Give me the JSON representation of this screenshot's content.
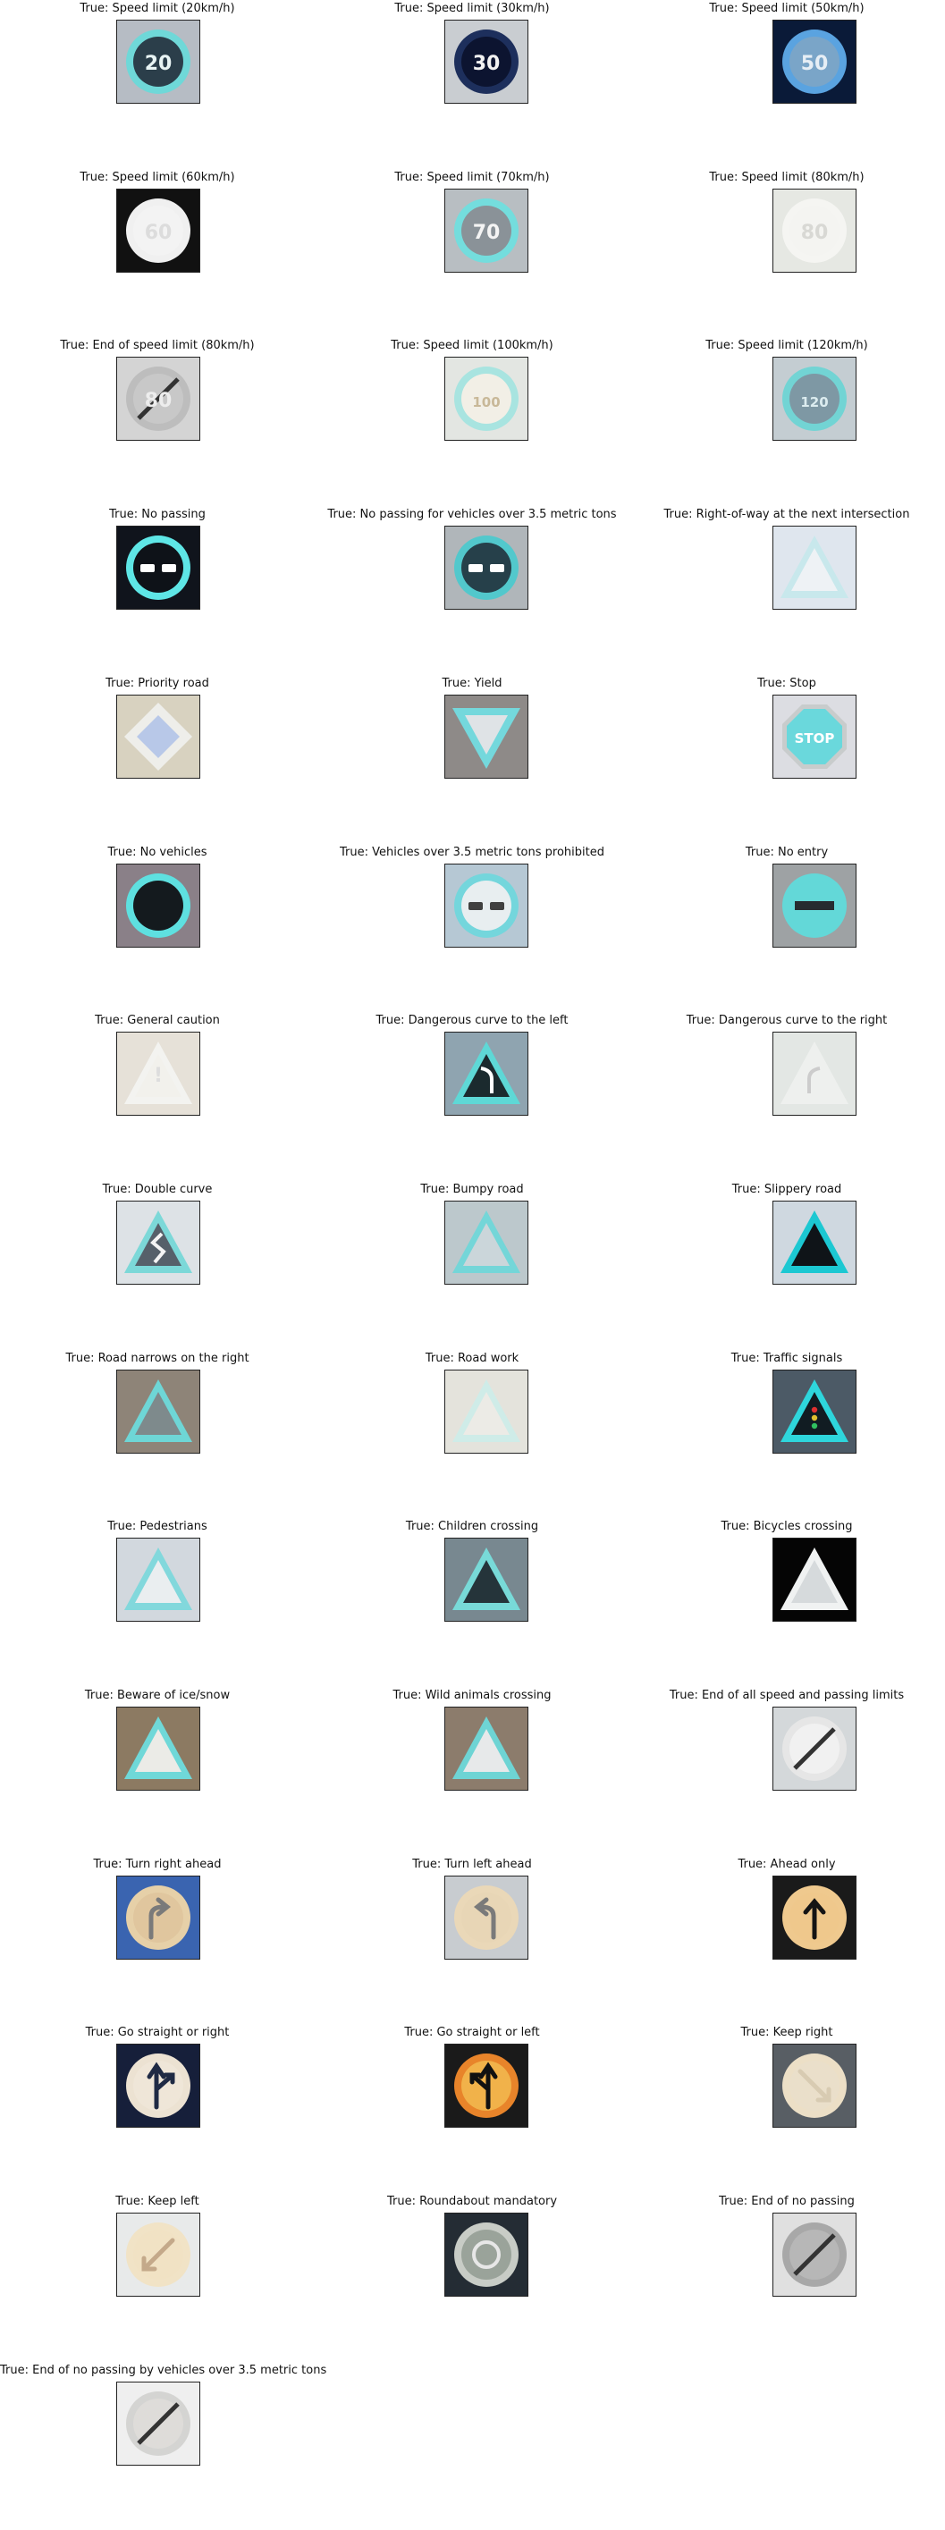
{
  "prefix": "True: ",
  "signs": [
    {
      "label": "Speed limit (20km/h)",
      "shape": "circle",
      "text": "20",
      "bg": "#b6bcc4",
      "rim": "#6fd8d8",
      "fill": "#2b3e4a",
      "ink": "#e8f4f4",
      "dark": true
    },
    {
      "label": "Speed limit (30km/h)",
      "shape": "circle",
      "text": "30",
      "bg": "#c9cdd1",
      "rim": "#1d2f5c",
      "fill": "#0c1430",
      "ink": "#f2f2f2",
      "dark": true
    },
    {
      "label": "Speed limit (50km/h)",
      "shape": "circle",
      "text": "50",
      "bg": "#0a1a38",
      "rim": "#5aa3e0",
      "fill": "#7aa5c8",
      "ink": "#e6eef5",
      "dark": true
    },
    {
      "label": "Speed limit (60km/h)",
      "shape": "circle",
      "text": "60",
      "bg": "#111111",
      "rim": "#f0f0f0",
      "fill": "#f3f3f3",
      "ink": "#dcdcdc",
      "dark": false
    },
    {
      "label": "Speed limit (70km/h)",
      "shape": "circle",
      "text": "70",
      "bg": "#b8bec2",
      "rim": "#74dddd",
      "fill": "#8a9298",
      "ink": "#f4f4f4",
      "dark": true
    },
    {
      "label": "Speed limit (80km/h)",
      "shape": "circle",
      "text": "80",
      "bg": "#e6e8e3",
      "rim": "#f5f5f2",
      "fill": "#f4f4f1",
      "ink": "#d8d8d4",
      "dark": false
    },
    {
      "label": "End of speed limit (80km/h)",
      "shape": "circle",
      "text": "80",
      "bg": "#d4d4d4",
      "rim": "#bdbdbd",
      "fill": "#c8c8c8",
      "ink": "#ededed",
      "dark": false,
      "slash": true
    },
    {
      "label": "Speed limit (100km/h)",
      "shape": "circle",
      "text": "100",
      "bg": "#e3e6e2",
      "rim": "#a8e4e0",
      "fill": "#f2efe6",
      "ink": "#c8b898",
      "dark": false
    },
    {
      "label": "Speed limit (120km/h)",
      "shape": "circle",
      "text": "120",
      "bg": "#c4cdd2",
      "rim": "#72d4d4",
      "fill": "#7e98a4",
      "ink": "#dcecef",
      "dark": true
    },
    {
      "label": "No passing",
      "shape": "circle",
      "text": "",
      "bg": "#10141c",
      "rim": "#5ee6e6",
      "fill": "#0e1218",
      "ink": "#ffffff",
      "dark": true,
      "cars": true
    },
    {
      "label": "No passing for vehicles over 3.5 metric tons",
      "shape": "circle",
      "text": "",
      "bg": "#b0b6ba",
      "rim": "#52c8cc",
      "fill": "#26404a",
      "ink": "#ffffff",
      "dark": true,
      "cars": true
    },
    {
      "label": "Right-of-way at the next intersection",
      "shape": "triangle",
      "text": "",
      "bg": "#dfe6ee",
      "rim": "#c8e8ec",
      "fill": "#eef2f5",
      "ink": "#777777",
      "dark": false
    },
    {
      "label": "Priority road",
      "shape": "diamond",
      "text": "",
      "bg": "#d8d2c0",
      "rim": "#eeeeea",
      "fill": "#b8c8e8",
      "ink": "#ffffff",
      "dark": false
    },
    {
      "label": "Yield",
      "shape": "yield",
      "text": "",
      "bg": "#8e8a88",
      "rim": "#74d8dc",
      "fill": "#dfe3e6",
      "ink": "#ffffff",
      "dark": false
    },
    {
      "label": "Stop",
      "shape": "octagon",
      "text": "STOP",
      "bg": "#dcdde2",
      "rim": "#c8cccc",
      "fill": "#6ad8dc",
      "ink": "#ffffff",
      "dark": true
    },
    {
      "label": "No vehicles",
      "shape": "circle",
      "text": "",
      "bg": "#8a8088",
      "rim": "#5ee0e0",
      "fill": "#141a1e",
      "ink": "#ffffff",
      "dark": true
    },
    {
      "label": "Vehicles over 3.5 metric tons prohibited",
      "shape": "circle",
      "text": "",
      "bg": "#b6c8d4",
      "rim": "#74d6dc",
      "fill": "#e8eef0",
      "ink": "#404040",
      "dark": false,
      "cars": true
    },
    {
      "label": "No entry",
      "shape": "circle",
      "text": "",
      "bg": "#9ea2a4",
      "rim": "#63d8d8",
      "fill": "#63d8d8",
      "ink": "#262c30",
      "dark": true,
      "bar": true
    },
    {
      "label": "General caution",
      "shape": "triangle",
      "text": "!",
      "bg": "#e6e1d8",
      "rim": "#f3f3f0",
      "fill": "#f2f1ec",
      "ink": "#dddddd",
      "dark": false
    },
    {
      "label": "Dangerous curve to the left",
      "shape": "triangle",
      "text": "",
      "bg": "#8fa4b0",
      "rim": "#5ed8d6",
      "fill": "#1b2a2e",
      "ink": "#ffffff",
      "dark": true,
      "curve": "left"
    },
    {
      "label": "Dangerous curve to the right",
      "shape": "triangle",
      "text": "",
      "bg": "#e3e7e4",
      "rim": "#eef0ee",
      "fill": "#eef0ee",
      "ink": "#cccccc",
      "dark": false,
      "curve": "right"
    },
    {
      "label": "Double curve",
      "shape": "triangle",
      "text": "",
      "bg": "#dde2e6",
      "rim": "#7cd8d8",
      "fill": "#56606a",
      "ink": "#f4f4f4",
      "dark": true,
      "curve": "double"
    },
    {
      "label": "Bumpy road",
      "shape": "triangle",
      "text": "",
      "bg": "#bcc8cc",
      "rim": "#74d6d8",
      "fill": "#cbd6da",
      "ink": "#333333",
      "dark": false
    },
    {
      "label": "Slippery road",
      "shape": "triangle",
      "text": "",
      "bg": "#cfd8e0",
      "rim": "#1cc8d2",
      "fill": "#0f1418",
      "ink": "#e8e8e8",
      "dark": true
    },
    {
      "label": "Road narrows on the right",
      "shape": "triangle",
      "text": "",
      "bg": "#8e8478",
      "rim": "#6ed6d6",
      "fill": "#7e8a8c",
      "ink": "#f0f0f0",
      "dark": true
    },
    {
      "label": "Road work",
      "shape": "triangle",
      "text": "",
      "bg": "#e4e3dc",
      "rim": "#cfece8",
      "fill": "#ecebe6",
      "ink": "#bfbfbf",
      "dark": false
    },
    {
      "label": "Traffic signals",
      "shape": "triangle",
      "text": "",
      "bg": "#4c5a66",
      "rim": "#2ed6dc",
      "fill": "#111c22",
      "ink": "#f0f0f0",
      "dark": true,
      "lights": true
    },
    {
      "label": "Pedestrians",
      "shape": "triangle",
      "text": "",
      "bg": "#d2d8de",
      "rim": "#82d8dc",
      "fill": "#eaeef0",
      "ink": "#3a3a3a",
      "dark": false
    },
    {
      "label": "Children crossing",
      "shape": "triangle",
      "text": "",
      "bg": "#788890",
      "rim": "#78dad8",
      "fill": "#25343a",
      "ink": "#f3f3f3",
      "dark": true
    },
    {
      "label": "Bicycles crossing",
      "shape": "triangle",
      "text": "",
      "bg": "#050505",
      "rim": "#f0f2f2",
      "fill": "#d6dadc",
      "ink": "#5a5a5a",
      "dark": false
    },
    {
      "label": "Beware of ice/snow",
      "shape": "triangle",
      "text": "",
      "bg": "#8c7a62",
      "rim": "#6fd8d8",
      "fill": "#ebebe7",
      "ink": "#6a6a6a",
      "dark": false
    },
    {
      "label": "Wild animals crossing",
      "shape": "triangle",
      "text": "",
      "bg": "#8c7c6c",
      "rim": "#6ed4d4",
      "fill": "#e7e9ea",
      "ink": "#444444",
      "dark": false
    },
    {
      "label": "End of all speed and passing limits",
      "shape": "circle",
      "text": "",
      "bg": "#d4d8da",
      "rim": "#e6e6e6",
      "fill": "#f1f1f1",
      "ink": "#2a2a2a",
      "dark": false,
      "slash": true
    },
    {
      "label": "Turn right ahead",
      "shape": "circle",
      "text": "",
      "bg": "#3a64b0",
      "rim": "#e6d0a8",
      "fill": "#e0c69e",
      "ink": "#7a7a7a",
      "dark": false,
      "arrow": "right"
    },
    {
      "label": "Turn left ahead",
      "shape": "circle",
      "text": "",
      "bg": "#c8ccd0",
      "rim": "#ead8b8",
      "fill": "#e8d6b6",
      "ink": "#7a7a7a",
      "dark": false,
      "arrow": "left"
    },
    {
      "label": "Ahead only",
      "shape": "circle",
      "text": "",
      "bg": "#1a1a1a",
      "rim": "#efc98e",
      "fill": "#efc88c",
      "ink": "#141414",
      "dark": false,
      "arrow": "up"
    },
    {
      "label": "Go straight or right",
      "shape": "circle",
      "text": "",
      "bg": "#161f3a",
      "rim": "#ece2d2",
      "fill": "#efe6d8",
      "ink": "#1f2a44",
      "dark": false,
      "arrow": "upright"
    },
    {
      "label": "Go straight or left",
      "shape": "circle",
      "text": "",
      "bg": "#1a1a1a",
      "rim": "#e8842a",
      "fill": "#f1b24a",
      "ink": "#111111",
      "dark": false,
      "arrow": "upleft"
    },
    {
      "label": "Keep right",
      "shape": "circle",
      "text": "",
      "bg": "#585e64",
      "rim": "#ecdfc6",
      "fill": "#eadfca",
      "ink": "#d8cbb2",
      "dark": false,
      "arrow": "downright"
    },
    {
      "label": "Keep left",
      "shape": "circle",
      "text": "",
      "bg": "#e8eaea",
      "rim": "#f1e3c6",
      "fill": "#f1e2c4",
      "ink": "#c4a98a",
      "dark": false,
      "arrow": "downleft"
    },
    {
      "label": "Roundabout mandatory",
      "shape": "circle",
      "text": "",
      "bg": "#242c34",
      "rim": "#c8ccc6",
      "fill": "#9aa39a",
      "ink": "#e7e7e7",
      "dark": true,
      "round": true
    },
    {
      "label": "End of no passing",
      "shape": "circle",
      "text": "",
      "bg": "#e0e0e0",
      "rim": "#a8a8a8",
      "fill": "#b7b7b7",
      "ink": "#6a6a6a",
      "dark": false,
      "slash": true
    },
    {
      "label": "End of no passing by vehicles over 3.5 metric tons",
      "shape": "circle",
      "text": "",
      "bg": "#efefef",
      "rim": "#d4d4d2",
      "fill": "#dedcd9",
      "ink": "#b8b4ac",
      "dark": false,
      "slash": true
    }
  ]
}
